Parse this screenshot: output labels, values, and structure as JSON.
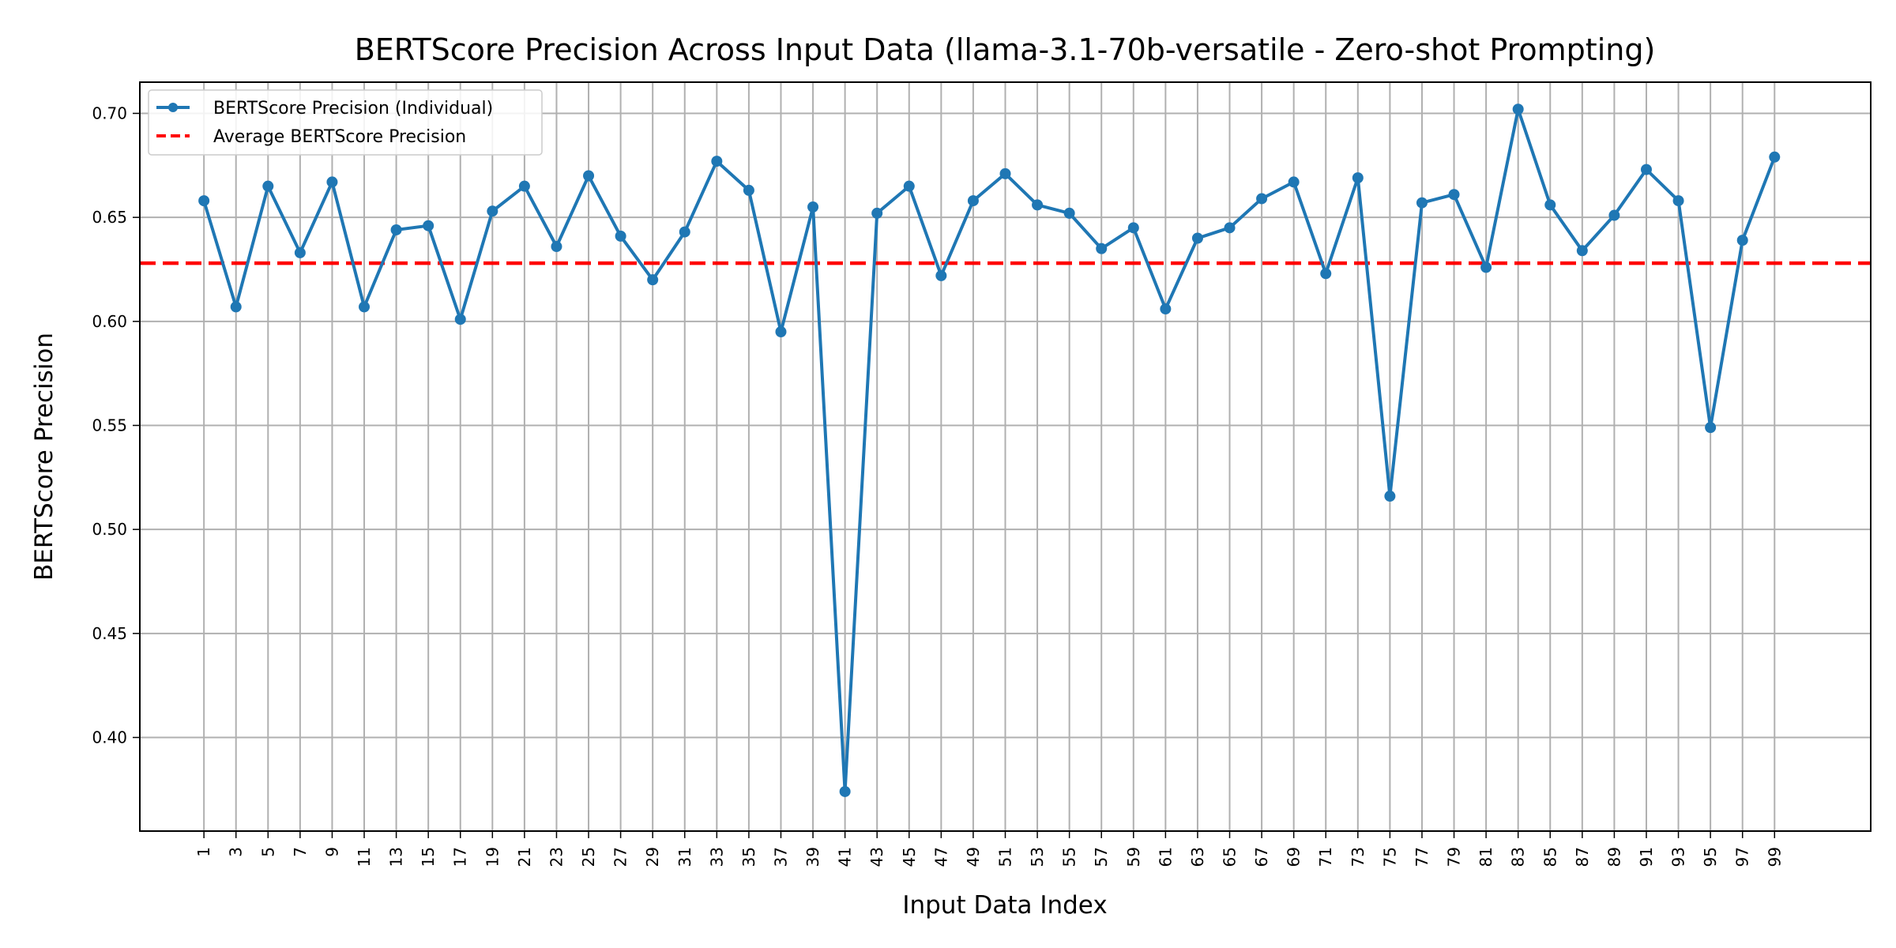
{
  "chart_data": {
    "type": "line",
    "title": "BERTScore Precision Across Input Data (llama-3.1-70b-versatile - Zero-shot Prompting)",
    "xlabel": "Input Data Index",
    "ylabel": "BERTScore Precision",
    "xlim": [
      -3,
      105
    ],
    "ylim": [
      0.355,
      0.715
    ],
    "x_ticks": [
      1,
      3,
      5,
      7,
      9,
      11,
      13,
      15,
      17,
      19,
      21,
      23,
      25,
      27,
      29,
      31,
      33,
      35,
      37,
      39,
      41,
      43,
      45,
      47,
      49,
      51,
      53,
      55,
      57,
      59,
      61,
      63,
      65,
      67,
      69,
      71,
      73,
      75,
      77,
      79,
      81,
      83,
      85,
      87,
      89,
      91,
      93,
      95,
      97,
      99
    ],
    "y_ticks": [
      0.4,
      0.45,
      0.5,
      0.55,
      0.6,
      0.65,
      0.7
    ],
    "grid": true,
    "legend_position": "top-left",
    "series": [
      {
        "name": "BERTScore Precision (Individual)",
        "color": "#1f77b4",
        "style": "solid-with-markers",
        "x": [
          1,
          3,
          5,
          7,
          9,
          11,
          13,
          15,
          17,
          19,
          21,
          23,
          25,
          27,
          29,
          31,
          33,
          35,
          37,
          39,
          41,
          43,
          45,
          47,
          49,
          51,
          53,
          55,
          57,
          59,
          61,
          63,
          65,
          67,
          69,
          71,
          73,
          75,
          77,
          79,
          81,
          83,
          85,
          87,
          89,
          91,
          93,
          95,
          97,
          99
        ],
        "y": [
          0.658,
          0.607,
          0.665,
          0.633,
          0.667,
          0.607,
          0.644,
          0.646,
          0.601,
          0.653,
          0.665,
          0.636,
          0.67,
          0.641,
          0.62,
          0.643,
          0.677,
          0.663,
          0.595,
          0.655,
          0.374,
          0.652,
          0.665,
          0.622,
          0.658,
          0.671,
          0.656,
          0.652,
          0.635,
          0.645,
          0.606,
          0.64,
          0.645,
          0.659,
          0.667,
          0.623,
          0.669,
          0.516,
          0.657,
          0.661,
          0.626,
          0.702,
          0.656,
          0.634,
          0.651,
          0.673,
          0.658,
          0.549,
          0.639,
          0.679
        ]
      },
      {
        "name": "Average BERTScore Precision",
        "color": "#ff0000",
        "style": "dashed",
        "y_constant": 0.628
      }
    ]
  }
}
